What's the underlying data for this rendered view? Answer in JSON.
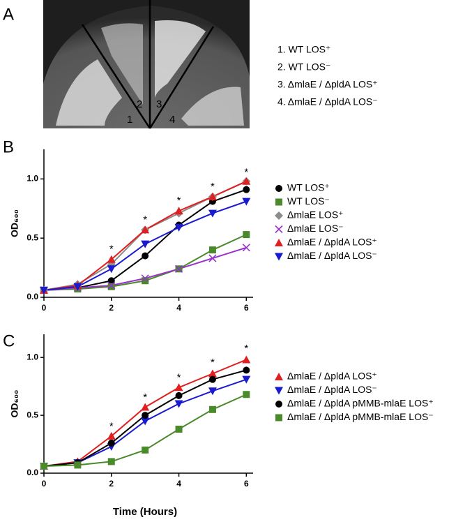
{
  "panel_a": {
    "panel_label": "A",
    "sector_numbers": [
      "1",
      "2",
      "3",
      "4"
    ],
    "labels": [
      "1. WT LOS⁺",
      "2. WT LOS⁻",
      "3. ΔmlaE / ΔpldA LOS⁺",
      "4. ΔmlaE / ΔpldA LOS⁻"
    ]
  },
  "chart_data": [
    {
      "type": "line",
      "panel_label": "B",
      "ylabel": "OD₆₀₀",
      "x": [
        0,
        1,
        2,
        3,
        4,
        5,
        6
      ],
      "xlim": [
        0,
        6.2
      ],
      "xticks": [
        0,
        2,
        4,
        6
      ],
      "ylim": [
        0,
        1.25
      ],
      "yticks": [
        {
          "value": 0,
          "label": "0.0"
        },
        {
          "value": 0.5,
          "label": "0.5"
        },
        {
          "value": 1,
          "label": "1.0"
        }
      ],
      "annotation_x": [
        2,
        3,
        4,
        5,
        6
      ],
      "annotation_y": [
        0.42,
        0.67,
        0.83,
        0.95,
        1.07
      ],
      "annotation_text": [
        "*",
        "*",
        "*",
        "*",
        "*"
      ],
      "series": [
        {
          "name": "WT LOS⁺",
          "color": "#000000",
          "marker": "circle",
          "values": [
            0.06,
            0.08,
            0.14,
            0.35,
            0.61,
            0.81,
            0.91
          ]
        },
        {
          "name": "WT LOS⁻",
          "color": "#4a8a2a",
          "marker": "square",
          "values": [
            0.06,
            0.07,
            0.09,
            0.14,
            0.24,
            0.4,
            0.53
          ]
        },
        {
          "name": "ΔmlaE LOS⁺",
          "color": "#8c8c8c",
          "marker": "diamond",
          "values": [
            0.06,
            0.11,
            0.28,
            0.57,
            0.71,
            0.85,
            0.98
          ]
        },
        {
          "name": "ΔmlaE LOS⁻",
          "color": "#9932cc",
          "marker": "x",
          "values": [
            0.06,
            0.08,
            0.1,
            0.16,
            0.24,
            0.33,
            0.42
          ]
        },
        {
          "name": "ΔmlaE / ΔpldA LOS⁺",
          "color": "#e02020",
          "marker": "triangle-up",
          "values": [
            0.06,
            0.1,
            0.32,
            0.57,
            0.73,
            0.85,
            0.98
          ]
        },
        {
          "name": "ΔmlaE / ΔpldA LOS⁻",
          "color": "#1a1ad0",
          "marker": "triangle-down",
          "values": [
            0.06,
            0.09,
            0.24,
            0.45,
            0.59,
            0.71,
            0.81
          ]
        }
      ]
    },
    {
      "type": "line",
      "panel_label": "C",
      "ylabel": "OD₆₀₀",
      "xlabel": "Time (Hours)",
      "x": [
        0,
        1,
        2,
        3,
        4,
        5,
        6
      ],
      "xlim": [
        0,
        6.2
      ],
      "xticks": [
        0,
        2,
        4,
        6
      ],
      "ylim": [
        0,
        1.2
      ],
      "yticks": [
        {
          "value": 0,
          "label": "0.0"
        },
        {
          "value": 0.5,
          "label": "0.5"
        },
        {
          "value": 1,
          "label": "1.0"
        }
      ],
      "annotation_x": [
        2,
        3,
        4,
        5,
        6
      ],
      "annotation_y": [
        0.42,
        0.67,
        0.84,
        0.97,
        1.09
      ],
      "annotation_text": [
        "*",
        "*",
        "*",
        "*",
        "*"
      ],
      "series": [
        {
          "name": "ΔmlaE / ΔpldA LOS⁺",
          "color": "#e02020",
          "marker": "triangle-up",
          "values": [
            0.06,
            0.1,
            0.32,
            0.57,
            0.74,
            0.86,
            0.98
          ]
        },
        {
          "name": "ΔmlaE / ΔpldA LOS⁻",
          "color": "#1a1ad0",
          "marker": "triangle-down",
          "values": [
            0.06,
            0.09,
            0.23,
            0.45,
            0.6,
            0.71,
            0.81
          ]
        },
        {
          "name": "ΔmlaE / ΔpldA pMMB-mlaE LOS⁺",
          "color": "#000000",
          "marker": "circle",
          "values": [
            0.06,
            0.09,
            0.26,
            0.5,
            0.67,
            0.81,
            0.89
          ]
        },
        {
          "name": "ΔmlaE / ΔpldA pMMB-mlaE LOS⁻",
          "color": "#4a8a2a",
          "marker": "square",
          "values": [
            0.06,
            0.07,
            0.1,
            0.2,
            0.38,
            0.55,
            0.68
          ]
        }
      ]
    }
  ]
}
